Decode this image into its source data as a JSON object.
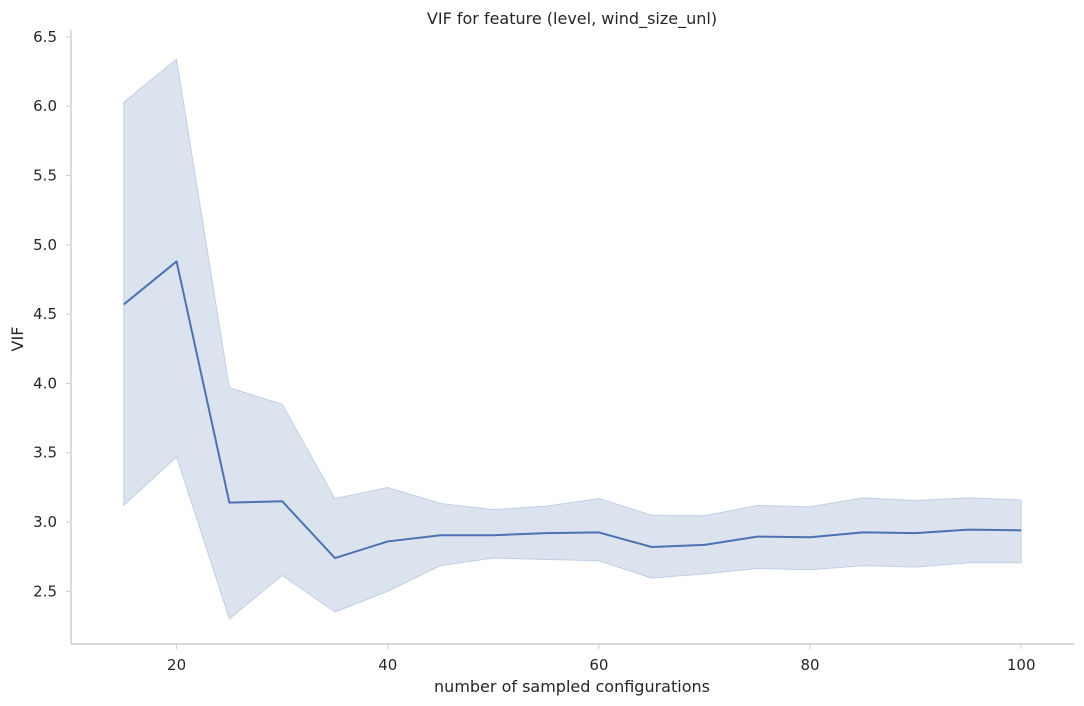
{
  "chart_data": {
    "type": "line",
    "title": "VIF for feature (level, wind_size_unl)",
    "xlabel": "number of sampled configurations",
    "ylabel": "VIF",
    "xlim": [
      10,
      105
    ],
    "ylim": [
      2.12,
      6.55
    ],
    "x_ticks": [
      20,
      40,
      60,
      80,
      100
    ],
    "y_ticks": [
      2.5,
      3.0,
      3.5,
      4.0,
      4.5,
      5.0,
      5.5,
      6.0,
      6.5
    ],
    "x_tick_labels": [
      "20",
      "40",
      "60",
      "80",
      "100"
    ],
    "y_tick_labels": [
      "2.5",
      "3.0",
      "3.5",
      "4.0",
      "4.5",
      "5.0",
      "5.5",
      "6.0",
      "6.5"
    ],
    "grid": false,
    "series": [
      {
        "x": [
          15,
          20,
          25,
          30,
          35,
          40,
          45,
          50,
          55,
          60,
          65,
          70,
          75,
          80,
          85,
          90,
          95,
          100
        ],
        "values": [
          4.57,
          4.88,
          3.14,
          3.15,
          2.74,
          2.86,
          2.905,
          2.905,
          2.92,
          2.925,
          2.82,
          2.835,
          2.895,
          2.89,
          2.925,
          2.92,
          2.945,
          2.94
        ],
        "ci_upper": [
          6.03,
          6.34,
          3.97,
          3.85,
          3.17,
          3.25,
          3.135,
          3.09,
          3.115,
          3.17,
          3.05,
          3.045,
          3.12,
          3.11,
          3.175,
          3.155,
          3.175,
          3.16
        ],
        "ci_lower": [
          3.12,
          3.47,
          2.3,
          2.615,
          2.35,
          2.5,
          2.685,
          2.74,
          2.73,
          2.72,
          2.595,
          2.625,
          2.665,
          2.655,
          2.685,
          2.675,
          2.705,
          2.705
        ],
        "color": "#4c72b0",
        "band_color": "#4c72b0"
      }
    ]
  }
}
